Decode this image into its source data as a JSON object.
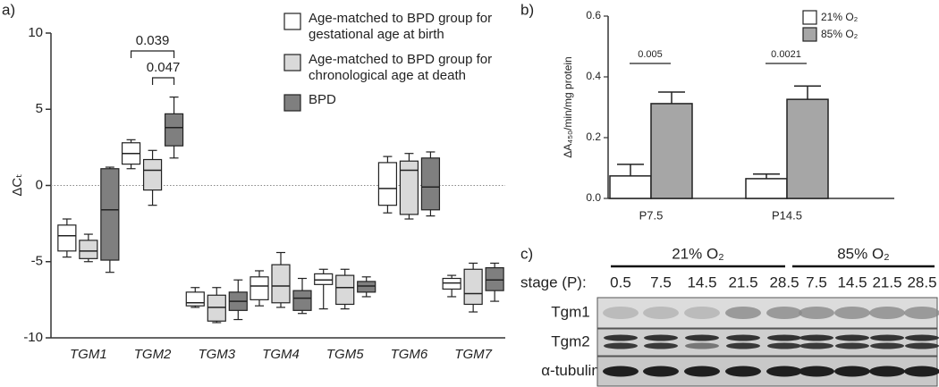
{
  "panel_labels": [
    "a)",
    "b)",
    "c)"
  ],
  "chart_data": [
    {
      "type": "box",
      "y_label": "ΔCₜ",
      "categories": [
        "TGM1",
        "TGM2",
        "TGM3",
        "TGM4",
        "TGM5",
        "TGM6",
        "TGM7"
      ],
      "ylim": [
        -10,
        10
      ],
      "yticks": [
        -10,
        -5,
        0,
        5,
        10
      ],
      "reference_line": 0,
      "annotations": [
        "0.039",
        "0.047"
      ],
      "series": [
        {
          "name": "Age-matched to BPD group for gestational age at birth",
          "color": "#ffffff",
          "values": [
            {
              "min": -4.7,
              "q1": -4.3,
              "median": -3.3,
              "q3": -2.6,
              "max": -2.2
            },
            {
              "min": 1.1,
              "q1": 1.4,
              "median": 2.1,
              "q3": 2.8,
              "max": 3.0
            },
            {
              "min": -8.0,
              "q1": -7.9,
              "median": -7.7,
              "q3": -7.0,
              "max": -6.7
            },
            {
              "min": -7.9,
              "q1": -7.5,
              "median": -6.6,
              "q3": -6.0,
              "max": -5.6
            },
            {
              "min": -8.1,
              "q1": -6.5,
              "median": -6.2,
              "q3": -5.8,
              "max": -5.5
            },
            {
              "min": -1.8,
              "q1": -1.3,
              "median": -0.2,
              "q3": 1.5,
              "max": 1.9
            },
            {
              "min": -7.3,
              "q1": -6.8,
              "median": -6.4,
              "q3": -6.1,
              "max": -5.9
            }
          ]
        },
        {
          "name": "Age-matched to BPD group for chronological age at death",
          "color": "#d9d9d9",
          "values": [
            {
              "min": -5.0,
              "q1": -4.8,
              "median": -4.3,
              "q3": -3.6,
              "max": -3.2
            },
            {
              "min": -1.3,
              "q1": -0.3,
              "median": 1.0,
              "q3": 1.7,
              "max": 2.3
            },
            {
              "min": -9.0,
              "q1": -8.9,
              "median": -8.0,
              "q3": -7.2,
              "max": -6.7
            },
            {
              "min": -8.0,
              "q1": -7.7,
              "median": -6.6,
              "q3": -5.2,
              "max": -4.4
            },
            {
              "min": -8.1,
              "q1": -7.8,
              "median": -6.7,
              "q3": -5.9,
              "max": -5.5
            },
            {
              "min": -2.2,
              "q1": -1.9,
              "median": 1.0,
              "q3": 1.6,
              "max": 2.1
            },
            {
              "min": -8.3,
              "q1": -7.8,
              "median": -7.1,
              "q3": -5.5,
              "max": -5.1
            }
          ]
        },
        {
          "name": "BPD",
          "color": "#7f7f7f",
          "values": [
            {
              "min": -5.7,
              "q1": -4.9,
              "median": -1.6,
              "q3": 1.1,
              "max": 1.2
            },
            {
              "min": 1.8,
              "q1": 2.6,
              "median": 3.8,
              "q3": 4.7,
              "max": 5.8
            },
            {
              "min": -8.8,
              "q1": -8.2,
              "median": -7.6,
              "q3": -7.0,
              "max": -6.2
            },
            {
              "min": -8.4,
              "q1": -8.2,
              "median": -7.4,
              "q3": -6.9,
              "max": -6.1
            },
            {
              "min": -7.3,
              "q1": -7.0,
              "median": -6.6,
              "q3": -6.3,
              "max": -6.0
            },
            {
              "min": -2.0,
              "q1": -1.6,
              "median": -0.1,
              "q3": 1.8,
              "max": 2.2
            },
            {
              "min": -7.6,
              "q1": -6.9,
              "median": -6.2,
              "q3": -5.4,
              "max": -5.1
            }
          ]
        }
      ]
    },
    {
      "type": "bar",
      "y_label": "ΔA₄₅₀/min/mg protein",
      "categories": [
        "P7.5",
        "P14.5"
      ],
      "ylim": [
        0,
        0.6
      ],
      "yticks": [
        {
          "value": 0,
          "label": "0.0"
        },
        0.2,
        0.4,
        0.6
      ],
      "annotations": [
        "0.005",
        "0.0021"
      ],
      "series": [
        {
          "name": "21% O₂",
          "color": "#ffffff",
          "values": [
            0.074,
            0.065
          ],
          "errors": [
            0.038,
            0.015
          ]
        },
        {
          "name": "85% O₂",
          "color": "#a6a6a6",
          "values": [
            0.312,
            0.326
          ],
          "errors": [
            0.038,
            0.044
          ]
        }
      ]
    }
  ],
  "blot": {
    "conditions": [
      "21% O₂",
      "85% O₂"
    ],
    "stage_label": "stage (P):",
    "stages": [
      "0.5",
      "7.5",
      "14.5",
      "21.5",
      "28.5",
      "7.5",
      "14.5",
      "21.5",
      "28.5"
    ],
    "rows": [
      "Tgm1",
      "Tgm2",
      "α-tubulin"
    ]
  }
}
